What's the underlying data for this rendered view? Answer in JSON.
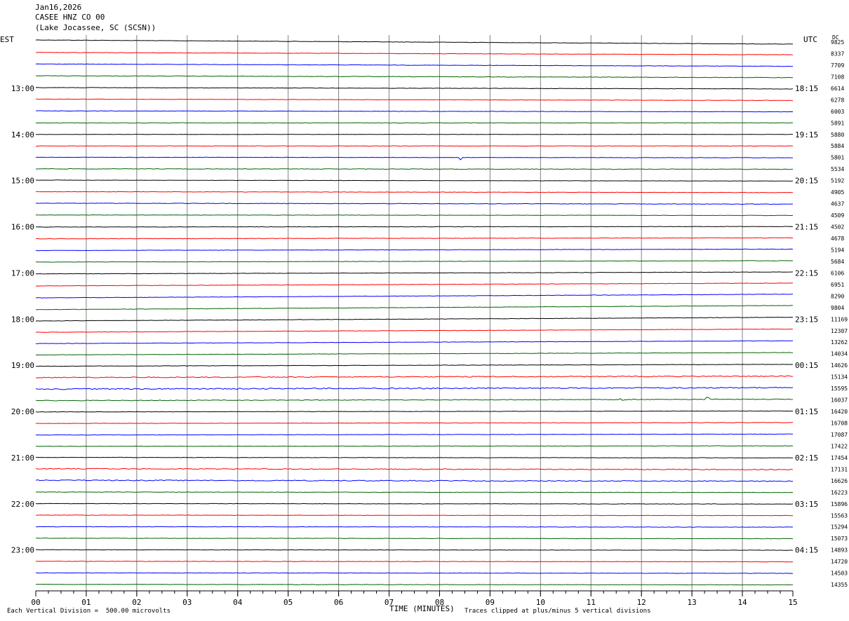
{
  "header": {
    "date": "Jan16,2026",
    "station": "CASEE HNZ CO 00",
    "location": "(Lake Jocassee, SC (SCSN))",
    "left_timezone": "EST",
    "right_timezone": "UTC",
    "dc_header": "DC"
  },
  "footer": {
    "scale_note": "Each Vertical Division =  500.00 microvolts",
    "axis_title": "TIME (MINUTES)",
    "clip_note": "Traces clipped at plus/minus 5 vertical divisions"
  },
  "colors": {
    "trace_cycle": [
      "#000000",
      "#ff0000",
      "#0000ff",
      "#006400"
    ],
    "grid": "#808080",
    "text": "#000000"
  },
  "chart_data": {
    "type": "line",
    "title": "Jan16,2026 CASEE HNZ CO 00 (Lake Jocassee, SC (SCSN))",
    "xlabel": "TIME (MINUTES)",
    "xlim": [
      0,
      15
    ],
    "x_ticks": [
      "00",
      "01",
      "02",
      "03",
      "04",
      "05",
      "06",
      "07",
      "08",
      "09",
      "10",
      "11",
      "12",
      "13",
      "14",
      "15"
    ],
    "rows_per_hour": 4,
    "row_minutes": 15,
    "start_time_est": "12:00",
    "left_hour_labels": [
      "13:00",
      "14:00",
      "15:00",
      "16:00",
      "17:00",
      "18:00",
      "19:00",
      "20:00",
      "21:00",
      "22:00",
      "23:00"
    ],
    "right_hour_labels": [
      "18:15",
      "19:15",
      "20:15",
      "21:15",
      "22:15",
      "23:15",
      "00:15",
      "01:15",
      "02:15",
      "03:15",
      "04:15"
    ],
    "dc_offsets": [
      9825,
      8337,
      7709,
      7108,
      6614,
      6278,
      6003,
      5891,
      5880,
      5884,
      5801,
      5534,
      5192,
      4905,
      4637,
      4509,
      4502,
      4678,
      5194,
      5684,
      6106,
      6951,
      8290,
      9804,
      11169,
      12307,
      13262,
      14034,
      14626,
      15134,
      15595,
      16037,
      16420,
      16708,
      17087,
      17422,
      17454,
      17131,
      16626,
      16223,
      15896,
      15563,
      15294,
      15073,
      14893,
      14720,
      14503,
      14355
    ],
    "row_drift_divisions": [
      -0.9,
      -0.5,
      -0.5,
      -0.4,
      -0.3,
      -0.3,
      -0.2,
      0,
      0,
      0,
      -0.1,
      -0.1,
      -0.2,
      -0.2,
      -0.2,
      -0.1,
      0.1,
      0.2,
      0.3,
      0.3,
      0.4,
      0.6,
      0.8,
      0.9,
      0.8,
      0.7,
      0.6,
      0.5,
      0.4,
      0.3,
      0.3,
      0.3,
      0.2,
      0.2,
      0.2,
      0.1,
      -0.1,
      -0.2,
      -0.2,
      -0.1,
      -0.1,
      -0.1,
      -0.1,
      -0.1,
      -0.1,
      -0.1,
      -0.1,
      -0.1
    ],
    "row_noise_divisions": [
      0.08,
      0.08,
      0.08,
      0.1,
      0.08,
      0.08,
      0.08,
      0.1,
      0.06,
      0.08,
      0.08,
      0.12,
      0.06,
      0.08,
      0.1,
      0.08,
      0.08,
      0.1,
      0.08,
      0.08,
      0.08,
      0.08,
      0.08,
      0.08,
      0.08,
      0.08,
      0.08,
      0.08,
      0.08,
      0.2,
      0.25,
      0.15,
      0.08,
      0.08,
      0.08,
      0.08,
      0.08,
      0.18,
      0.2,
      0.08,
      0.08,
      0.08,
      0.08,
      0.08,
      0.08,
      0.08,
      0.08,
      0.08
    ],
    "events": [
      {
        "row": 10,
        "minute": 8.4,
        "amplitude_divisions": 1.2
      },
      {
        "row": 31,
        "minute": 11.6,
        "amplitude_divisions": 0.5
      },
      {
        "row": 31,
        "minute": 13.3,
        "amplitude_divisions": 0.5
      }
    ]
  }
}
